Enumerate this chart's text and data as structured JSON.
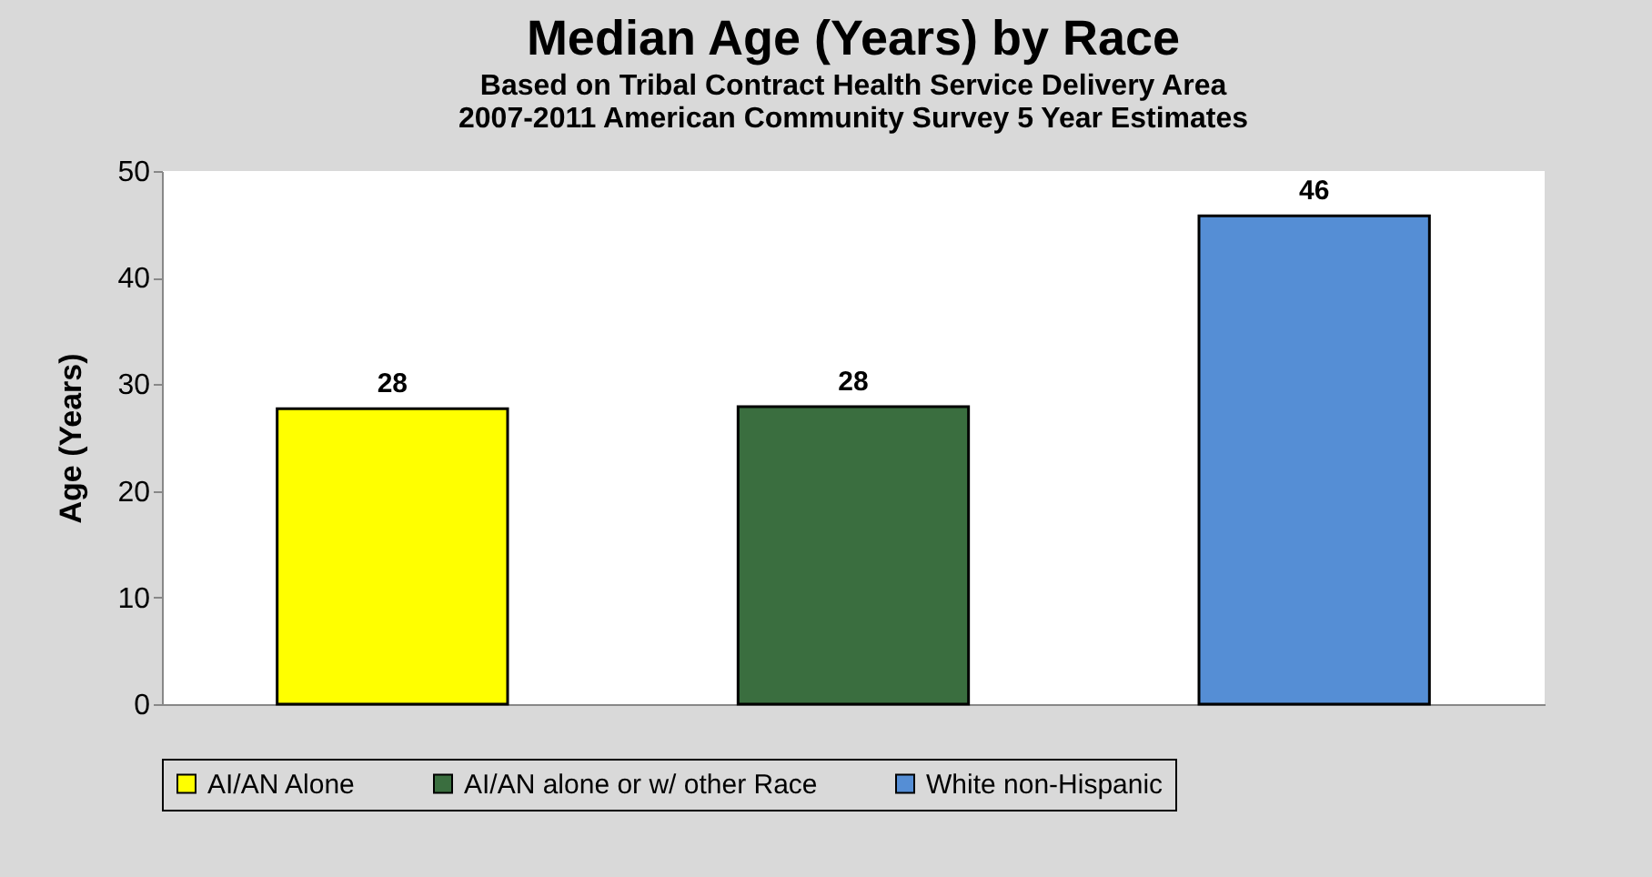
{
  "chart_data": {
    "type": "bar",
    "title": "Median Age (Years) by Race",
    "subtitle": "Based on Tribal Contract Health Service Delivery Area\n2007-2011 American Community Survey 5 Year Estimates",
    "ylabel": "Age (Years)",
    "categories": [
      null,
      null,
      null
    ],
    "series": [
      {
        "name": "AI/AN Alone",
        "color": "#ffff00",
        "values": [
          27.7,
          null,
          null
        ],
        "value_labels": [
          "28",
          null,
          null
        ]
      },
      {
        "name": "AI/AN alone or w/ other Race",
        "color": "#3a6e3f",
        "values": [
          null,
          27.9,
          null
        ],
        "value_labels": [
          null,
          "28",
          null
        ]
      },
      {
        "name": "White non-Hispanic",
        "color": "#558ed5",
        "values": [
          null,
          null,
          45.8
        ],
        "value_labels": [
          null,
          null,
          "46"
        ]
      }
    ],
    "ylim": [
      0,
      50
    ],
    "yticks": [
      0,
      10,
      20,
      30,
      40,
      50
    ],
    "grid": false,
    "legend": "bottom",
    "tick_labels": "y"
  }
}
